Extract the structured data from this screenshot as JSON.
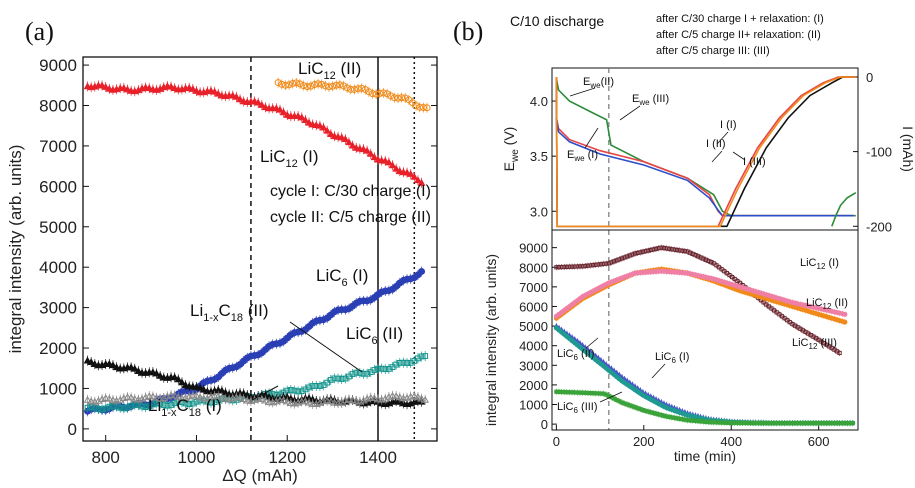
{
  "panel_a": {
    "label": "(a)",
    "legend": [
      "cycle I:  C/30 charge (I)",
      "cycle II: C/5 charge (II)"
    ],
    "annotations": {
      "lic12_ii": [
        "LiC",
        "12",
        " (II)"
      ],
      "lic12_i": [
        "LiC",
        "12",
        " (I)"
      ],
      "lic6_i": [
        "LiC",
        "6",
        " (I)"
      ],
      "lic6_ii": [
        "LiC",
        "6",
        " (II)"
      ],
      "li1xc18_ii": [
        "Li",
        "1-x",
        "C",
        "18",
        " (II)"
      ],
      "li1xc18_i": [
        "Li",
        "1-x",
        "C",
        "18",
        " (I)"
      ]
    }
  },
  "panel_b": {
    "label": "(b)",
    "discharge_label": "C/10 discharge",
    "header_lines": [
      "after C/30 charge I + relaxation: (I)",
      "after C/5 charge II+ relaxation: (II)",
      "after C/5 charge III: (III)"
    ],
    "top_annotations": {
      "ewe_ii": [
        "E",
        "we",
        "(II)"
      ],
      "ewe_iii": [
        "E",
        "we",
        " (III)"
      ],
      "ewe_i": [
        "E",
        "we",
        " (I)"
      ],
      "i_i": "I (I)",
      "i_ii": "I (II)",
      "i_iii": "I (III)"
    },
    "bottom_annotations": {
      "lic12_i": [
        "LiC",
        "12",
        " (I)"
      ],
      "lic12_ii": [
        "LiC",
        "12",
        " (II)"
      ],
      "lic12_iii": [
        "LiC",
        "12",
        " (III)"
      ],
      "lic6_ii": [
        "LiC",
        "6",
        " (II)"
      ],
      "lic6_i": [
        "LiC",
        "6",
        " (I)"
      ],
      "lic6_iii": [
        "LiC",
        "6",
        " (III)"
      ]
    }
  },
  "chart_data": [
    {
      "id": "a",
      "type": "scatter",
      "xlabel": "ΔQ (mAh)",
      "ylabel": "integral intensity (arb. units)",
      "xlim": [
        750,
        1530
      ],
      "ylim": [
        -300,
        9200
      ],
      "xticks": [
        800,
        1000,
        1200,
        1400
      ],
      "yticks": [
        0,
        1000,
        2000,
        3000,
        4000,
        5000,
        6000,
        7000,
        8000,
        9000
      ],
      "vlines": [
        {
          "x": 1120,
          "style": "dashed"
        },
        {
          "x": 1400,
          "style": "solid"
        },
        {
          "x": 1480,
          "style": "dotted"
        }
      ],
      "series": [
        {
          "color": "#e8202a",
          "marker": "triangle",
          "x": [
            760,
            850,
            950,
            1050,
            1150,
            1250,
            1350,
            1450,
            1500
          ],
          "y": [
            8500,
            8380,
            8450,
            8300,
            8000,
            7600,
            7000,
            6400,
            6100
          ]
        },
        {
          "color": "#f08a1a",
          "marker": "circle-open",
          "x": [
            1180,
            1250,
            1300,
            1350,
            1400,
            1450,
            1510
          ],
          "y": [
            8550,
            8500,
            8500,
            8420,
            8300,
            8200,
            7900
          ]
        },
        {
          "color": "#2b3fb5",
          "marker": "circle",
          "x": [
            760,
            900,
            1000,
            1100,
            1200,
            1300,
            1400,
            1500
          ],
          "y": [
            450,
            630,
            1000,
            1650,
            2250,
            2850,
            3300,
            3900
          ]
        },
        {
          "color": "#12948c",
          "marker": "square-open",
          "x": [
            760,
            850,
            950,
            1050,
            1150,
            1250,
            1300,
            1350,
            1400,
            1450,
            1510
          ],
          "y": [
            500,
            550,
            620,
            700,
            830,
            1000,
            1200,
            1350,
            1450,
            1600,
            1800
          ]
        },
        {
          "color": "#111111",
          "marker": "triangle",
          "x": [
            760,
            850,
            950,
            1000,
            1100,
            1200,
            1300,
            1400,
            1500
          ],
          "y": [
            1650,
            1500,
            1250,
            1000,
            850,
            750,
            700,
            650,
            650
          ]
        },
        {
          "color": "#888888",
          "marker": "triangle-open",
          "x": [
            760,
            850,
            950,
            1050,
            1150,
            1250,
            1350,
            1450,
            1510
          ],
          "y": [
            700,
            750,
            800,
            780,
            700,
            640,
            700,
            800,
            750
          ]
        }
      ]
    },
    {
      "id": "b-top",
      "type": "line",
      "ylabel": "E_we (V)",
      "y2label": "I (mAh)",
      "xlim": [
        -10,
        690
      ],
      "ylim": [
        2.83,
        4.3
      ],
      "y2lim": [
        -205,
        12
      ],
      "yticks": [
        3.0,
        3.5,
        4.0
      ],
      "y2ticks": [
        0,
        -100,
        -200
      ],
      "series": [
        {
          "axis": "left",
          "color": "#2e8b3a",
          "x": [
            0,
            5,
            30,
            80,
            115,
            125,
            200,
            300,
            360,
            380,
            400,
            600,
            670,
            685
          ],
          "y": [
            4.2,
            4.1,
            4.0,
            3.9,
            3.83,
            3.6,
            3.45,
            3.3,
            3.15,
            3.0,
            2.96,
            2.96,
            2.96,
            2.96
          ]
        },
        {
          "axis": "left",
          "color": "#e84545",
          "x": [
            0,
            5,
            30,
            100,
            200,
            300,
            350,
            370,
            380,
            500,
            680
          ],
          "y": [
            3.85,
            3.75,
            3.65,
            3.55,
            3.45,
            3.3,
            3.15,
            3.0,
            2.96,
            2.96,
            2.96
          ]
        },
        {
          "axis": "left",
          "color": "#2c4fc9",
          "x": [
            0,
            5,
            30,
            100,
            200,
            300,
            350,
            372,
            380,
            500,
            680
          ],
          "y": [
            3.85,
            3.72,
            3.63,
            3.52,
            3.42,
            3.28,
            3.12,
            3.0,
            2.96,
            2.96,
            2.96
          ]
        },
        {
          "axis": "right",
          "color": "#111111",
          "x": [
            0,
            2,
            390,
            430,
            480,
            530,
            580,
            630,
            655,
            685
          ],
          "y": [
            0,
            -200,
            -200,
            -150,
            -95,
            -55,
            -25,
            -8,
            0,
            0
          ]
        },
        {
          "axis": "right",
          "color": "#e84545",
          "x": [
            0,
            2,
            370,
            410,
            460,
            510,
            560,
            610,
            645,
            685
          ],
          "y": [
            0,
            -200,
            -200,
            -150,
            -95,
            -55,
            -25,
            -8,
            0,
            0
          ]
        },
        {
          "axis": "right",
          "color": "#f08a1a",
          "x": [
            0,
            2,
            375,
            415,
            465,
            515,
            565,
            615,
            650,
            685
          ],
          "y": [
            0,
            -200,
            -200,
            -150,
            -95,
            -55,
            -25,
            -8,
            0,
            0
          ]
        },
        {
          "axis": "right",
          "color": "#2e8b3a",
          "x": [
            630,
            640,
            650,
            665,
            685
          ],
          "y": [
            -200,
            -185,
            -172,
            -162,
            -155
          ]
        }
      ],
      "vlines": [
        {
          "x": 120,
          "style": "dashed"
        }
      ]
    },
    {
      "id": "b-bottom",
      "type": "scatter",
      "xlabel": "time (min)",
      "ylabel": "integral intensity (arb. units)",
      "xlim": [
        -10,
        690
      ],
      "ylim": [
        -300,
        9900
      ],
      "xticks": [
        0,
        200,
        400,
        600
      ],
      "yticks": [
        0,
        1000,
        2000,
        3000,
        4000,
        5000,
        6000,
        7000,
        8000,
        9000
      ],
      "vlines": [
        {
          "x": 120,
          "style": "dashed"
        }
      ],
      "series": [
        {
          "color": "#6b2730",
          "marker": "square-open",
          "x": [
            0,
            60,
            120,
            180,
            240,
            300,
            360,
            420,
            480,
            540,
            600,
            650
          ],
          "y": [
            8000,
            8050,
            8200,
            8700,
            9000,
            8800,
            8200,
            7200,
            6100,
            5100,
            4300,
            3600
          ]
        },
        {
          "color": "#f08a1a",
          "marker": "circle",
          "x": [
            0,
            60,
            120,
            180,
            240,
            300,
            360,
            420,
            480,
            540,
            600,
            660
          ],
          "y": [
            5400,
            6400,
            7100,
            7700,
            7900,
            7700,
            7300,
            6800,
            6400,
            6000,
            5600,
            5200
          ]
        },
        {
          "color": "#ef7fa4",
          "marker": "circle",
          "x": [
            0,
            60,
            120,
            180,
            240,
            300,
            360,
            420,
            480,
            540,
            600,
            660
          ],
          "y": [
            5500,
            6500,
            7200,
            7700,
            7800,
            7700,
            7400,
            7000,
            6600,
            6200,
            5900,
            5600
          ]
        },
        {
          "color": "#4a55c8",
          "marker": "triangle",
          "x": [
            0,
            50,
            100,
            150,
            200,
            250,
            300,
            350,
            400,
            450,
            480
          ],
          "y": [
            5000,
            4200,
            3300,
            2400,
            1600,
            1000,
            550,
            250,
            120,
            80,
            60
          ]
        },
        {
          "color": "#1f9a92",
          "marker": "circle",
          "x": [
            0,
            50,
            100,
            150,
            200,
            250,
            300,
            350,
            400,
            450,
            500,
            600,
            680
          ],
          "y": [
            4900,
            4000,
            3100,
            2200,
            1450,
            850,
            450,
            200,
            100,
            60,
            50,
            50,
            50
          ]
        },
        {
          "color": "#3aa33a",
          "marker": "square",
          "x": [
            0,
            60,
            110,
            150,
            200,
            250,
            300,
            350,
            400,
            500,
            600,
            680
          ],
          "y": [
            1650,
            1600,
            1550,
            1100,
            700,
            400,
            200,
            100,
            60,
            50,
            50,
            50
          ]
        }
      ]
    }
  ]
}
